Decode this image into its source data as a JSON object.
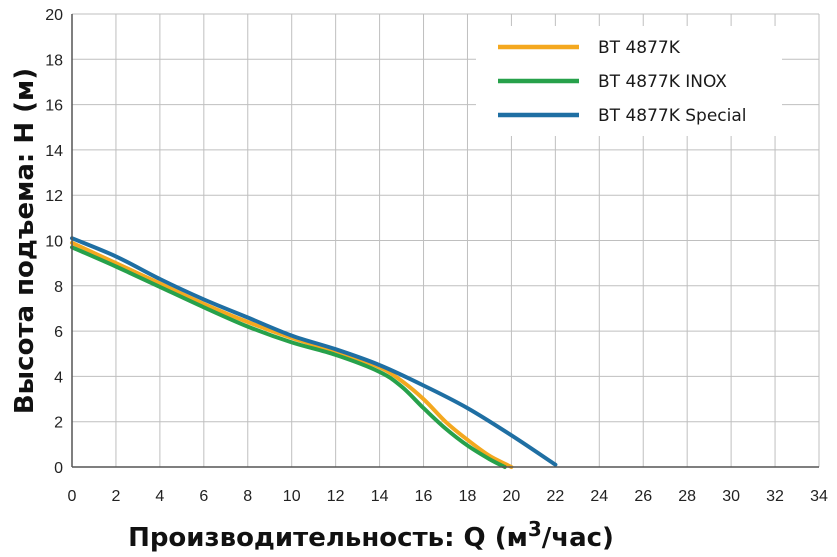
{
  "chart_data": {
    "type": "line",
    "xlabel_main": "Производительность: Q (м",
    "xlabel_sup": "3",
    "xlabel_end": "/час)",
    "ylabel": "Высота подъема: H (м)",
    "xlim": [
      0,
      34
    ],
    "ylim": [
      0,
      20
    ],
    "x_ticks": [
      0,
      2,
      4,
      6,
      8,
      10,
      12,
      14,
      16,
      18,
      20,
      22,
      24,
      26,
      28,
      30,
      32,
      34
    ],
    "y_ticks": [
      0,
      2,
      4,
      6,
      8,
      10,
      12,
      14,
      16,
      18,
      20
    ],
    "grid": true,
    "legend_position": "top-right",
    "series": [
      {
        "name": "BT 4877K",
        "color": "#f4a81f",
        "points": [
          [
            0,
            9.9
          ],
          [
            2,
            9.0
          ],
          [
            4,
            8.1
          ],
          [
            6,
            7.2
          ],
          [
            8,
            6.4
          ],
          [
            10,
            5.7
          ],
          [
            12,
            5.1
          ],
          [
            14,
            4.4
          ],
          [
            15,
            3.8
          ],
          [
            16,
            3.0
          ],
          [
            17,
            2.0
          ],
          [
            18,
            1.2
          ],
          [
            19,
            0.5
          ],
          [
            20,
            0.0
          ]
        ]
      },
      {
        "name": "BT 4877K INOX",
        "color": "#27a14b",
        "points": [
          [
            0,
            9.7
          ],
          [
            2,
            8.85
          ],
          [
            4,
            7.95
          ],
          [
            6,
            7.05
          ],
          [
            8,
            6.2
          ],
          [
            10,
            5.5
          ],
          [
            12,
            4.95
          ],
          [
            14,
            4.2
          ],
          [
            15,
            3.55
          ],
          [
            16,
            2.6
          ],
          [
            17,
            1.7
          ],
          [
            18,
            0.95
          ],
          [
            19,
            0.35
          ],
          [
            19.7,
            0.0
          ]
        ]
      },
      {
        "name": "BT 4877K Special",
        "color": "#1f6fa3",
        "points": [
          [
            0,
            10.1
          ],
          [
            2,
            9.3
          ],
          [
            4,
            8.3
          ],
          [
            6,
            7.4
          ],
          [
            8,
            6.6
          ],
          [
            10,
            5.8
          ],
          [
            12,
            5.2
          ],
          [
            14,
            4.5
          ],
          [
            16,
            3.6
          ],
          [
            18,
            2.6
          ],
          [
            20,
            1.4
          ],
          [
            22,
            0.1
          ]
        ]
      }
    ]
  }
}
